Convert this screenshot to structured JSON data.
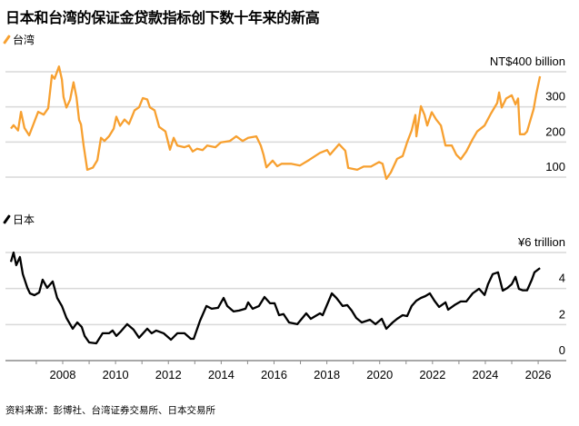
{
  "title": "日本和台湾的保证金贷款指标创下数十年来的新高",
  "source": "资料来源：彭博社、台湾证券交易所、日本交易所",
  "colors": {
    "taiwan": "#f7a030",
    "japan": "#000000",
    "grid": "#d9d9d9",
    "axis": "#8c8c8c"
  },
  "chart_data": [
    {
      "type": "line",
      "legend": "台湾",
      "legend_placement": "top-left",
      "unit_label": "NT$400 billion",
      "yticks": [
        {
          "value": 400,
          "label": "NT$400 billion"
        },
        {
          "value": 300,
          "label": "300"
        },
        {
          "value": 200,
          "label": "200"
        },
        {
          "value": 100,
          "label": "100"
        }
      ],
      "ylim": [
        100,
        400
      ],
      "grid": true,
      "series": [
        {
          "name": "台湾",
          "points": [
            [
              2006.04,
              238
            ],
            [
              2006.14,
              248
            ],
            [
              2006.31,
              233
            ],
            [
              2006.42,
              286
            ],
            [
              2006.55,
              240
            ],
            [
              2006.73,
              219
            ],
            [
              2007.07,
              286
            ],
            [
              2007.28,
              278
            ],
            [
              2007.45,
              296
            ],
            [
              2007.59,
              390
            ],
            [
              2007.69,
              380
            ],
            [
              2007.86,
              415
            ],
            [
              2007.97,
              378
            ],
            [
              2008.03,
              328
            ],
            [
              2008.14,
              298
            ],
            [
              2008.28,
              320
            ],
            [
              2008.41,
              370
            ],
            [
              2008.52,
              328
            ],
            [
              2008.62,
              263
            ],
            [
              2008.69,
              250
            ],
            [
              2008.79,
              190
            ],
            [
              2008.93,
              121
            ],
            [
              2009.14,
              127
            ],
            [
              2009.31,
              148
            ],
            [
              2009.45,
              212
            ],
            [
              2009.58,
              203
            ],
            [
              2009.75,
              216
            ],
            [
              2009.93,
              238
            ],
            [
              2010.03,
              272
            ],
            [
              2010.17,
              246
            ],
            [
              2010.34,
              264
            ],
            [
              2010.51,
              251
            ],
            [
              2010.72,
              290
            ],
            [
              2010.89,
              299
            ],
            [
              2011.03,
              325
            ],
            [
              2011.2,
              321
            ],
            [
              2011.3,
              299
            ],
            [
              2011.48,
              290
            ],
            [
              2011.65,
              243
            ],
            [
              2011.89,
              230
            ],
            [
              2012.06,
              178
            ],
            [
              2012.2,
              212
            ],
            [
              2012.34,
              190
            ],
            [
              2012.61,
              185
            ],
            [
              2012.78,
              190
            ],
            [
              2012.92,
              173
            ],
            [
              2013.09,
              181
            ],
            [
              2013.3,
              177
            ],
            [
              2013.47,
              190
            ],
            [
              2013.78,
              185
            ],
            [
              2013.99,
              199
            ],
            [
              2014.33,
              203
            ],
            [
              2014.57,
              216
            ],
            [
              2014.81,
              203
            ],
            [
              2015.02,
              212
            ],
            [
              2015.33,
              216
            ],
            [
              2015.5,
              190
            ],
            [
              2015.6,
              164
            ],
            [
              2015.71,
              128
            ],
            [
              2015.95,
              147
            ],
            [
              2016.12,
              131
            ],
            [
              2016.29,
              138
            ],
            [
              2016.64,
              138
            ],
            [
              2016.98,
              133
            ],
            [
              2017.33,
              149
            ],
            [
              2017.74,
              169
            ],
            [
              2018.01,
              177
            ],
            [
              2018.12,
              164
            ],
            [
              2018.46,
              194
            ],
            [
              2018.7,
              175
            ],
            [
              2018.81,
              126
            ],
            [
              2019.15,
              121
            ],
            [
              2019.39,
              130
            ],
            [
              2019.67,
              130
            ],
            [
              2019.98,
              143
            ],
            [
              2020.11,
              138
            ],
            [
              2020.25,
              95
            ],
            [
              2020.42,
              113
            ],
            [
              2020.66,
              152
            ],
            [
              2020.87,
              160
            ],
            [
              2021.04,
              199
            ],
            [
              2021.21,
              233
            ],
            [
              2021.35,
              277
            ],
            [
              2021.39,
              216
            ],
            [
              2021.56,
              302
            ],
            [
              2021.7,
              277
            ],
            [
              2021.8,
              247
            ],
            [
              2021.97,
              285
            ],
            [
              2022.14,
              264
            ],
            [
              2022.32,
              247
            ],
            [
              2022.49,
              190
            ],
            [
              2022.73,
              190
            ],
            [
              2022.9,
              164
            ],
            [
              2023.07,
              151
            ],
            [
              2023.28,
              173
            ],
            [
              2023.52,
              208
            ],
            [
              2023.69,
              230
            ],
            [
              2023.97,
              247
            ],
            [
              2024.21,
              281
            ],
            [
              2024.45,
              311
            ],
            [
              2024.52,
              341
            ],
            [
              2024.62,
              298
            ],
            [
              2024.79,
              324
            ],
            [
              2025.0,
              333
            ],
            [
              2025.14,
              307
            ],
            [
              2025.24,
              324
            ],
            [
              2025.31,
              222
            ],
            [
              2025.48,
              222
            ],
            [
              2025.58,
              230
            ],
            [
              2025.83,
              294
            ],
            [
              2025.93,
              337
            ],
            [
              2026.07,
              387
            ]
          ]
        }
      ]
    },
    {
      "type": "line",
      "legend": "日本",
      "legend_placement": "top-left",
      "unit_label": "¥6 trillion",
      "yticks": [
        {
          "value": 6,
          "label": "¥6 trillion"
        },
        {
          "value": 4,
          "label": "4"
        },
        {
          "value": 2,
          "label": "2"
        },
        {
          "value": 0,
          "label": "0"
        }
      ],
      "ylim": [
        0,
        6
      ],
      "grid": true,
      "xticks": [
        "2008",
        "2010",
        "2012",
        "2014",
        "2016",
        "2018",
        "2020",
        "2022",
        "2024",
        "2026"
      ],
      "xlim": [
        2006,
        2027
      ],
      "series": [
        {
          "name": "日本",
          "points": [
            [
              2006.04,
              5.48
            ],
            [
              2006.14,
              6.0
            ],
            [
              2006.24,
              5.3
            ],
            [
              2006.38,
              5.75
            ],
            [
              2006.49,
              4.8
            ],
            [
              2006.66,
              4.04
            ],
            [
              2006.76,
              3.73
            ],
            [
              2006.93,
              3.63
            ],
            [
              2007.11,
              3.78
            ],
            [
              2007.24,
              4.49
            ],
            [
              2007.41,
              4.04
            ],
            [
              2007.62,
              4.39
            ],
            [
              2007.79,
              3.48
            ],
            [
              2007.97,
              3.03
            ],
            [
              2008.14,
              2.37
            ],
            [
              2008.38,
              1.77
            ],
            [
              2008.55,
              2.12
            ],
            [
              2008.72,
              1.87
            ],
            [
              2008.83,
              1.37
            ],
            [
              2009.0,
              1.01
            ],
            [
              2009.27,
              0.96
            ],
            [
              2009.51,
              1.52
            ],
            [
              2009.75,
              1.52
            ],
            [
              2009.89,
              1.67
            ],
            [
              2010.03,
              1.37
            ],
            [
              2010.2,
              1.62
            ],
            [
              2010.44,
              2.02
            ],
            [
              2010.68,
              1.72
            ],
            [
              2010.89,
              1.27
            ],
            [
              2011.2,
              1.77
            ],
            [
              2011.37,
              1.52
            ],
            [
              2011.54,
              1.67
            ],
            [
              2011.82,
              1.52
            ],
            [
              2012.1,
              1.16
            ],
            [
              2012.34,
              1.52
            ],
            [
              2012.61,
              1.52
            ],
            [
              2012.85,
              1.21
            ],
            [
              2012.96,
              1.21
            ],
            [
              2013.2,
              2.22
            ],
            [
              2013.44,
              3.03
            ],
            [
              2013.64,
              2.88
            ],
            [
              2013.88,
              2.93
            ],
            [
              2014.09,
              3.48
            ],
            [
              2014.23,
              3.03
            ],
            [
              2014.47,
              2.73
            ],
            [
              2014.68,
              2.78
            ],
            [
              2014.92,
              2.88
            ],
            [
              2015.02,
              3.23
            ],
            [
              2015.19,
              2.88
            ],
            [
              2015.43,
              3.03
            ],
            [
              2015.64,
              3.53
            ],
            [
              2015.85,
              3.18
            ],
            [
              2016.02,
              3.18
            ],
            [
              2016.19,
              2.52
            ],
            [
              2016.36,
              2.58
            ],
            [
              2016.57,
              2.12
            ],
            [
              2016.88,
              2.02
            ],
            [
              2017.22,
              2.62
            ],
            [
              2017.39,
              2.32
            ],
            [
              2017.74,
              2.62
            ],
            [
              2017.84,
              2.52
            ],
            [
              2018.19,
              3.73
            ],
            [
              2018.36,
              3.48
            ],
            [
              2018.6,
              3.03
            ],
            [
              2018.77,
              3.08
            ],
            [
              2018.94,
              2.78
            ],
            [
              2019.11,
              2.37
            ],
            [
              2019.32,
              2.12
            ],
            [
              2019.63,
              2.27
            ],
            [
              2019.84,
              2.02
            ],
            [
              2020.08,
              2.32
            ],
            [
              2020.25,
              1.77
            ],
            [
              2020.49,
              2.12
            ],
            [
              2020.66,
              2.32
            ],
            [
              2020.87,
              2.52
            ],
            [
              2021.04,
              2.47
            ],
            [
              2021.21,
              3.03
            ],
            [
              2021.39,
              3.33
            ],
            [
              2021.56,
              3.48
            ],
            [
              2021.73,
              3.58
            ],
            [
              2021.9,
              3.73
            ],
            [
              2022.07,
              3.33
            ],
            [
              2022.25,
              2.98
            ],
            [
              2022.49,
              3.23
            ],
            [
              2022.59,
              2.83
            ],
            [
              2022.83,
              3.08
            ],
            [
              2023.07,
              3.28
            ],
            [
              2023.28,
              3.28
            ],
            [
              2023.52,
              3.73
            ],
            [
              2023.76,
              3.99
            ],
            [
              2023.97,
              3.64
            ],
            [
              2024.1,
              4.24
            ],
            [
              2024.28,
              4.8
            ],
            [
              2024.48,
              4.9
            ],
            [
              2024.66,
              3.88
            ],
            [
              2024.83,
              4.03
            ],
            [
              2025.0,
              4.24
            ],
            [
              2025.14,
              4.65
            ],
            [
              2025.27,
              3.98
            ],
            [
              2025.41,
              3.9
            ],
            [
              2025.58,
              3.9
            ],
            [
              2025.76,
              4.49
            ],
            [
              2025.86,
              4.9
            ],
            [
              2026.07,
              5.14
            ]
          ]
        }
      ]
    }
  ]
}
